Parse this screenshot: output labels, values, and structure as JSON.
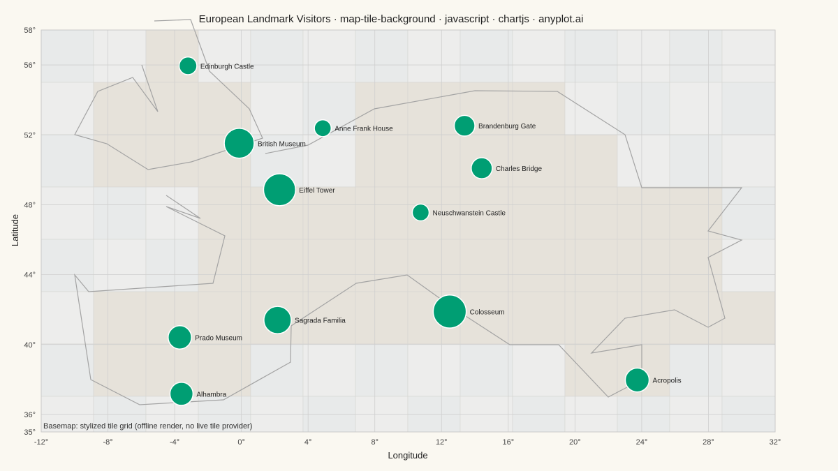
{
  "chart_data": {
    "type": "scatter",
    "title": "European Landmark Visitors · map-tile-background · javascript · chartjs · anyplot.ai",
    "xlabel": "Longitude",
    "ylabel": "Latitude",
    "xlim": [
      -12,
      32
    ],
    "ylim": [
      35,
      58
    ],
    "x_ticks": [
      -12,
      -8,
      -4,
      0,
      4,
      8,
      12,
      16,
      20,
      24,
      28,
      32
    ],
    "y_ticks": [
      35,
      36,
      40,
      44,
      48,
      52,
      56,
      58
    ],
    "tick_suffix": "°",
    "grid": true,
    "legend": "none",
    "note": "Basemap: stylized tile grid (offline render, no live tile provider)",
    "point_color": "#009e73",
    "coast_color": "#a3a3a3",
    "tile_colors": {
      "land": "#e6e2da",
      "sea_a": "#e8eaea",
      "sea_b": "#ededec"
    },
    "points": [
      {
        "name": "Edinburgh Castle",
        "lon": -3.2,
        "lat": 55.95,
        "size": 1.1
      },
      {
        "name": "Anne Frank House",
        "lon": 4.88,
        "lat": 52.38,
        "size": 0.9
      },
      {
        "name": "Brandenburg Gate",
        "lon": 13.38,
        "lat": 52.52,
        "size": 1.9
      },
      {
        "name": "British Museum",
        "lon": -0.13,
        "lat": 51.52,
        "size": 5.8
      },
      {
        "name": "Charles Bridge",
        "lon": 14.41,
        "lat": 50.09,
        "size": 2.0
      },
      {
        "name": "Eiffel Tower",
        "lon": 2.29,
        "lat": 48.86,
        "size": 7.0
      },
      {
        "name": "Neuschwanstein Castle",
        "lon": 10.75,
        "lat": 47.56,
        "size": 0.9
      },
      {
        "name": "Colosseum",
        "lon": 12.49,
        "lat": 41.89,
        "size": 7.6
      },
      {
        "name": "Sagrada Familia",
        "lon": 2.17,
        "lat": 41.4,
        "size": 4.5
      },
      {
        "name": "Prado Museum",
        "lon": -3.69,
        "lat": 40.41,
        "size": 2.8
      },
      {
        "name": "Acropolis",
        "lon": 23.73,
        "lat": 37.97,
        "size": 3.0
      },
      {
        "name": "Alhambra",
        "lon": -3.59,
        "lat": 37.18,
        "size": 2.7
      }
    ]
  }
}
